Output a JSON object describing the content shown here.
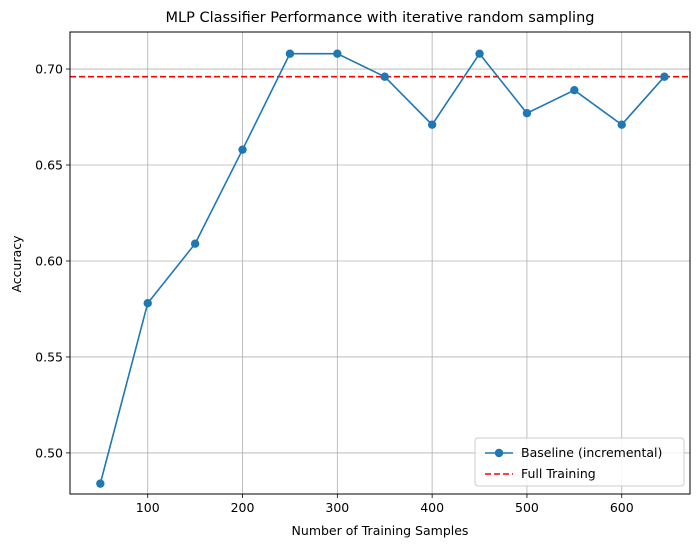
{
  "chart_data": {
    "type": "line",
    "title": "MLP Classifier Performance with iterative random sampling",
    "xlabel": "Number of Training Samples",
    "ylabel": "Accuracy",
    "xlim": [
      18,
      672
    ],
    "ylim": [
      0.4786,
      0.7193
    ],
    "xticks": [
      100,
      200,
      300,
      400,
      500,
      600
    ],
    "xtick_labels": [
      "100",
      "200",
      "300",
      "400",
      "500",
      "600"
    ],
    "yticks": [
      0.5,
      0.55,
      0.6,
      0.65,
      0.7
    ],
    "ytick_labels": [
      "0.50",
      "0.55",
      "0.60",
      "0.65",
      "0.70"
    ],
    "grid": true,
    "legend_position": "lower-right",
    "series": [
      {
        "name": "Baseline (incremental)",
        "style": "line-with-markers",
        "color": "#1f77b4",
        "x": [
          50,
          100,
          150,
          200,
          250,
          300,
          350,
          400,
          450,
          500,
          550,
          600,
          645
        ],
        "y": [
          0.484,
          0.578,
          0.609,
          0.658,
          0.708,
          0.708,
          0.696,
          0.671,
          0.708,
          0.677,
          0.689,
          0.671,
          0.696
        ]
      },
      {
        "name": "Full Training",
        "style": "dashed-hline",
        "color": "#ff0000",
        "y": 0.696
      }
    ]
  }
}
